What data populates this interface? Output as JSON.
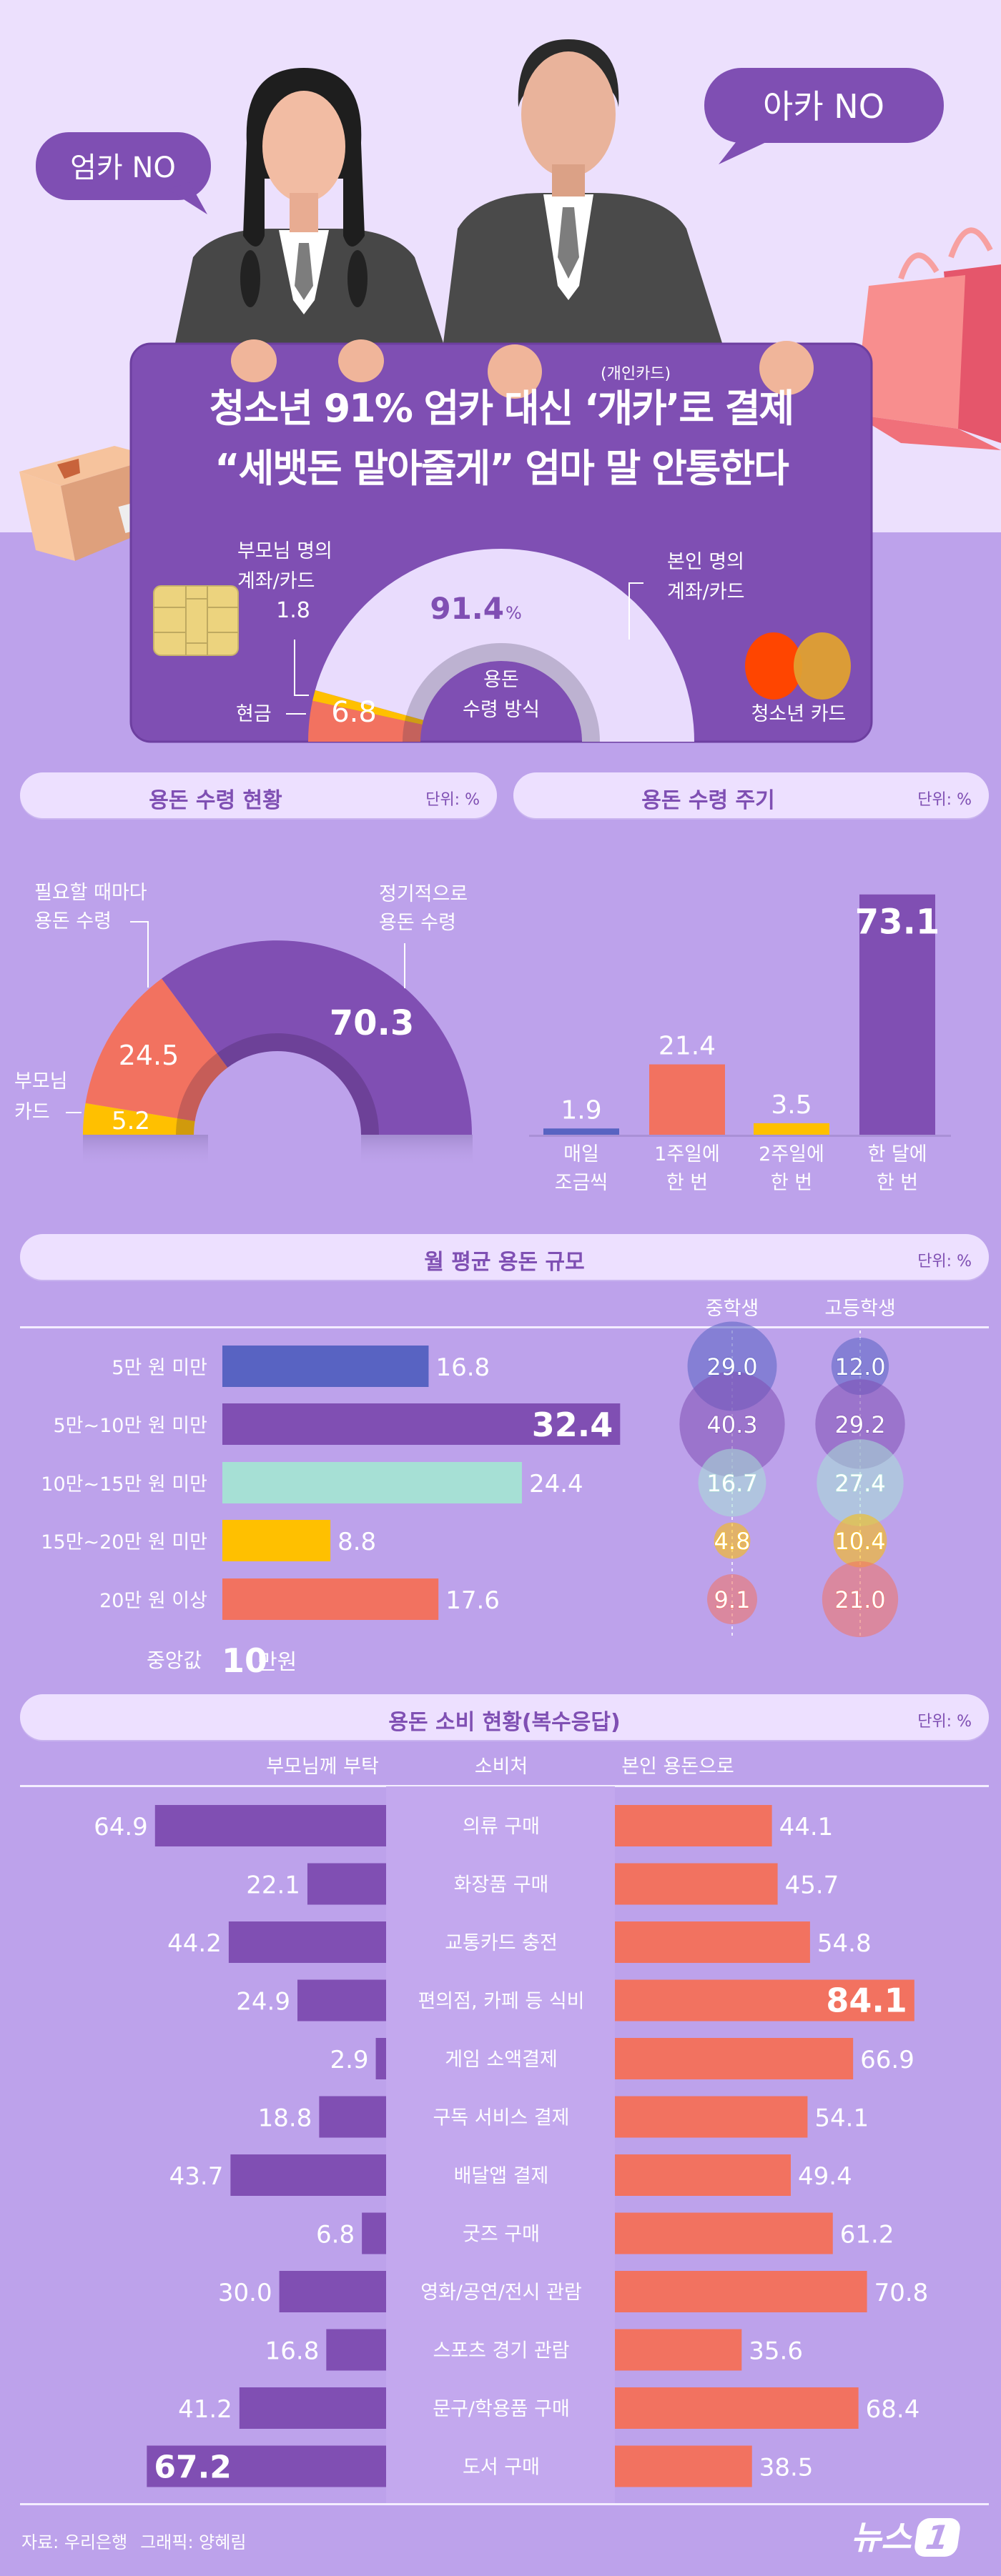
{
  "bubbles": {
    "left": "엄카 NO",
    "right": "아카 NO"
  },
  "hero": {
    "annotation": "(개인카드)",
    "title_line1_pre": "청소년 91% 엄카 대신 ",
    "title_highlight": "‘개카’",
    "title_line1_post": "로 결제",
    "title_line2": "“세뱃돈 맡아줄게” 엄마 말 안통한다"
  },
  "payment_method": {
    "center_label_1": "용돈",
    "center_label_2": "수령 방식",
    "parent_label_1": "부모님 명의",
    "parent_label_2": "계좌/카드",
    "cash_label": "현금",
    "self_label_1": "본인 명의",
    "self_label_2": "계좌/카드",
    "self_unit": "%",
    "card_label": "청소년 카드"
  },
  "sections": {
    "receipt_status": {
      "title": "용돈 수령 현황",
      "unit": "단위: %"
    },
    "receipt_cycle": {
      "title": "용돈 수령 주기",
      "unit": "단위: %"
    },
    "monthly": {
      "title": "월 평균 용돈 규모",
      "unit": "단위: %",
      "median_label": "중앙값",
      "median_value": "10",
      "median_unit": "만원"
    },
    "spending": {
      "title": "용돈 소비 현황(복수응답)",
      "unit": "단위: %",
      "col_center": "소비처"
    }
  },
  "footer": {
    "source": "자료: 우리은행",
    "credit": "그래픽: 양혜림",
    "logo": "뉴스1"
  },
  "colors": {
    "purple": "#804fb3",
    "red": "#f27260",
    "yellow": "#ffc000",
    "blue": "#5863c2",
    "mint": "#a6e0d5",
    "light": "#e9dcfd",
    "background": "#bda2eb"
  },
  "chart_data": [
    {
      "type": "pie",
      "shape": "half-donut",
      "categories": [
        "현금",
        "부모님 명의 계좌/카드",
        "본인 명의 계좌/카드"
      ],
      "values": [
        6.8,
        1.8,
        91.4
      ],
      "value_labels": [
        "6.8",
        "1.8",
        "91.4"
      ]
    },
    {
      "type": "pie",
      "shape": "half-donut",
      "title": "용돈 수령 현황",
      "categories": [
        "부모님 카드",
        "필요할 때마다 용돈 수령",
        "정기적으로 용돈 수령"
      ],
      "label_lines": [
        [
          "부모님",
          "카드"
        ],
        [
          "필요할 때마다",
          "용돈 수령"
        ],
        [
          "정기적으로",
          "용돈 수령"
        ]
      ],
      "values": [
        5.2,
        24.5,
        70.3
      ],
      "value_labels": [
        "5.2",
        "24.5",
        "70.3"
      ]
    },
    {
      "type": "bar",
      "title": "용돈 수령 주기",
      "categories": [
        "매일 조금씩",
        "1주일에 한 번",
        "2주일에 한 번",
        "한 달에 한 번"
      ],
      "label_lines": [
        [
          "매일",
          "조금씩"
        ],
        [
          "1주일에",
          "한 번"
        ],
        [
          "2주일에",
          "한 번"
        ],
        [
          "한 달에",
          "한 번"
        ]
      ],
      "values": [
        1.9,
        21.4,
        3.5,
        73.1
      ],
      "value_labels": [
        "1.9",
        "21.4",
        "3.5",
        "73.1"
      ]
    },
    {
      "type": "bar",
      "orientation": "horizontal",
      "title": "월 평균 용돈 규모",
      "categories": [
        "5만 원 미만",
        "5만~10만 원 미만",
        "10만~15만 원 미만",
        "15만~20만 원 미만",
        "20만 원 이상"
      ],
      "values": [
        16.8,
        32.4,
        24.4,
        8.8,
        17.6
      ],
      "value_labels": [
        "16.8",
        "32.4",
        "24.4",
        "8.8",
        "17.6"
      ],
      "bubble_series": [
        {
          "name": "중학생",
          "values": [
            29.0,
            40.3,
            16.7,
            4.8,
            9.1
          ],
          "value_labels": [
            "29.0",
            "40.3",
            "16.7",
            "4.8",
            "9.1"
          ]
        },
        {
          "name": "고등학생",
          "values": [
            12.0,
            29.2,
            27.4,
            10.4,
            21.0
          ],
          "value_labels": [
            "12.0",
            "29.2",
            "27.4",
            "10.4",
            "21.0"
          ]
        }
      ]
    },
    {
      "type": "bar",
      "orientation": "horizontal-diverging",
      "title": "용돈 소비 현황(복수응답)",
      "categories": [
        "의류 구매",
        "화장품 구매",
        "교통카드 충전",
        "편의점, 카페 등 식비",
        "게임 소액결제",
        "구독 서비스 결제",
        "배달앱 결제",
        "굿즈 구매",
        "영화/공연/전시 관람",
        "스포츠 경기 관람",
        "문구/학용품 구매",
        "도서 구매"
      ],
      "series": [
        {
          "name": "부모님께 부탁",
          "values": [
            64.9,
            22.1,
            44.2,
            24.9,
            2.9,
            18.8,
            43.7,
            6.8,
            30.0,
            16.8,
            41.2,
            67.2
          ],
          "value_labels": [
            "64.9",
            "22.1",
            "44.2",
            "24.9",
            "2.9",
            "18.8",
            "43.7",
            "6.8",
            "30.0",
            "16.8",
            "41.2",
            "67.2"
          ]
        },
        {
          "name": "본인 용돈으로",
          "values": [
            44.1,
            45.7,
            54.8,
            84.1,
            66.9,
            54.1,
            49.4,
            61.2,
            70.8,
            35.6,
            68.4,
            38.5
          ],
          "value_labels": [
            "44.1",
            "45.7",
            "54.8",
            "84.1",
            "66.9",
            "54.1",
            "49.4",
            "61.2",
            "70.8",
            "35.6",
            "68.4",
            "38.5"
          ]
        }
      ]
    }
  ]
}
